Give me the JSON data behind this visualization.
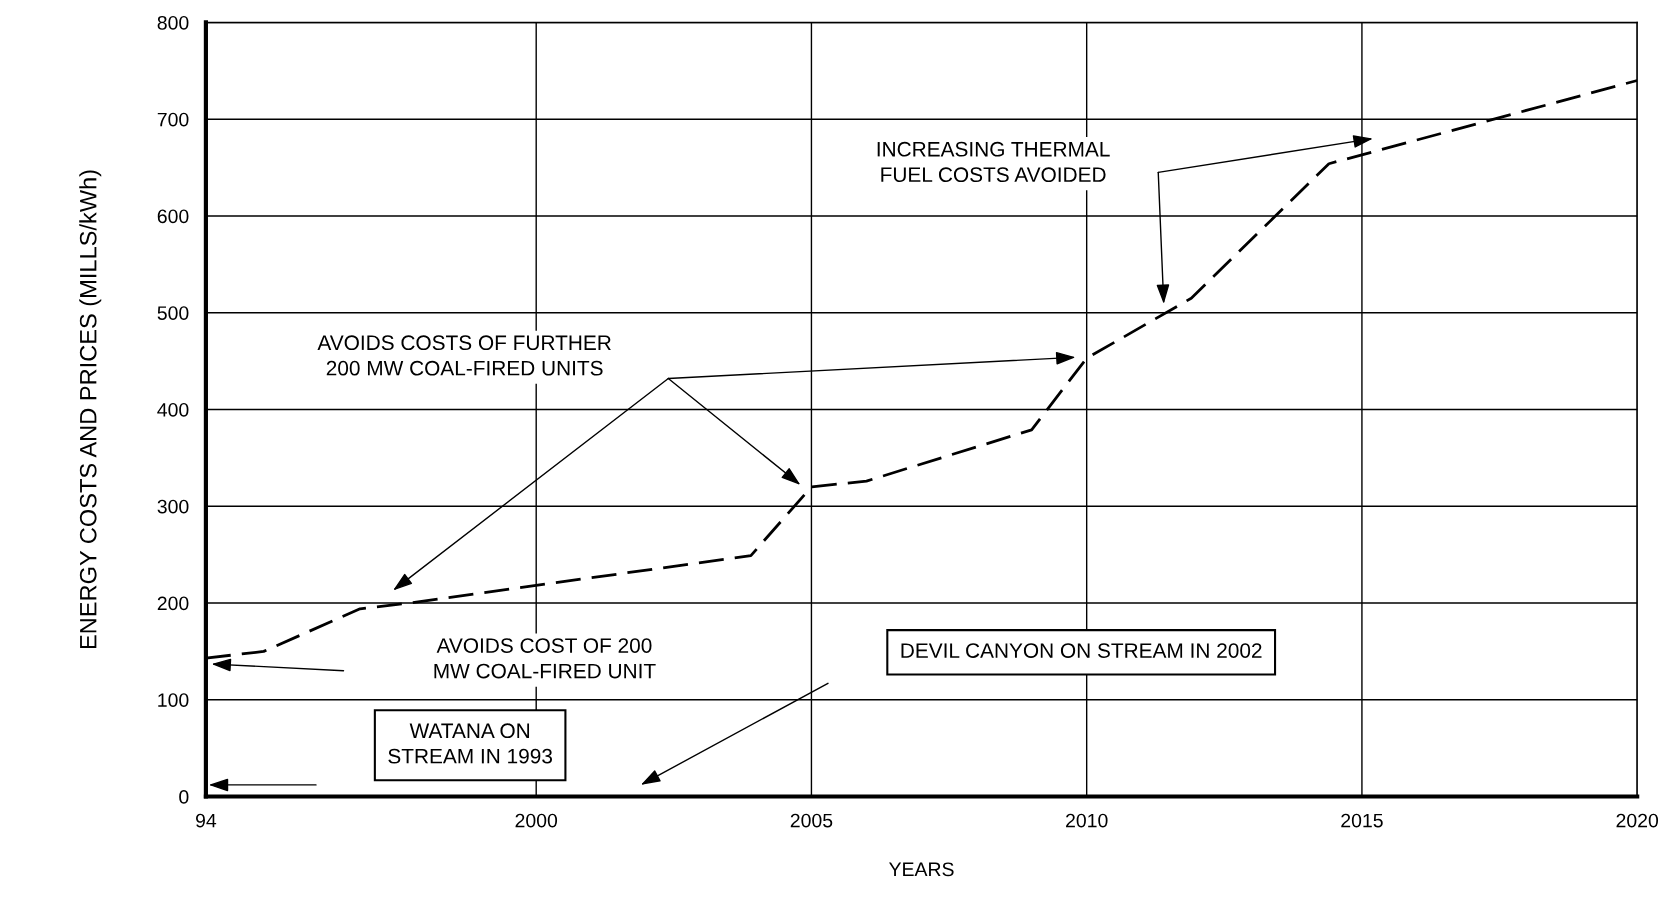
{
  "chart_data": {
    "type": "line",
    "xlabel": "YEARS",
    "ylabel": "ENERGY COSTS AND PRICES (MILLS/kWh)",
    "xlim": [
      1994,
      2020
    ],
    "xticks": [
      {
        "value": 1994,
        "label": "94"
      },
      2000,
      2005,
      2010,
      2015,
      2020
    ],
    "ylim": [
      0,
      800
    ],
    "yticks": [
      0,
      100,
      200,
      300,
      400,
      500,
      600,
      700,
      800
    ],
    "grid": true,
    "legend": false,
    "marker": "none",
    "line_style": "dashed",
    "series": [
      {
        "color": "#000000",
        "x": [
          1994,
          1995.05,
          1996.8,
          1997.7,
          2003.9,
          2005,
          2006,
          2009,
          2010,
          2011.9,
          2014.4,
          2020
        ],
        "values": [
          143,
          150,
          194,
          200,
          249,
          320,
          326,
          379,
          453,
          515,
          654,
          740
        ]
      }
    ],
    "annotations": [
      "AVOIDS COSTS OF FURTHER\n200 MW COAL-FIRED UNITS",
      "AVOIDS COST OF 200\nMW COAL-FIRED UNIT",
      "WATANA ON\nSTREAM IN 1993",
      "DEVIL CANYON ON STREAM IN 2002",
      "INCREASING THERMAL\nFUEL COSTS AVOIDED"
    ]
  }
}
